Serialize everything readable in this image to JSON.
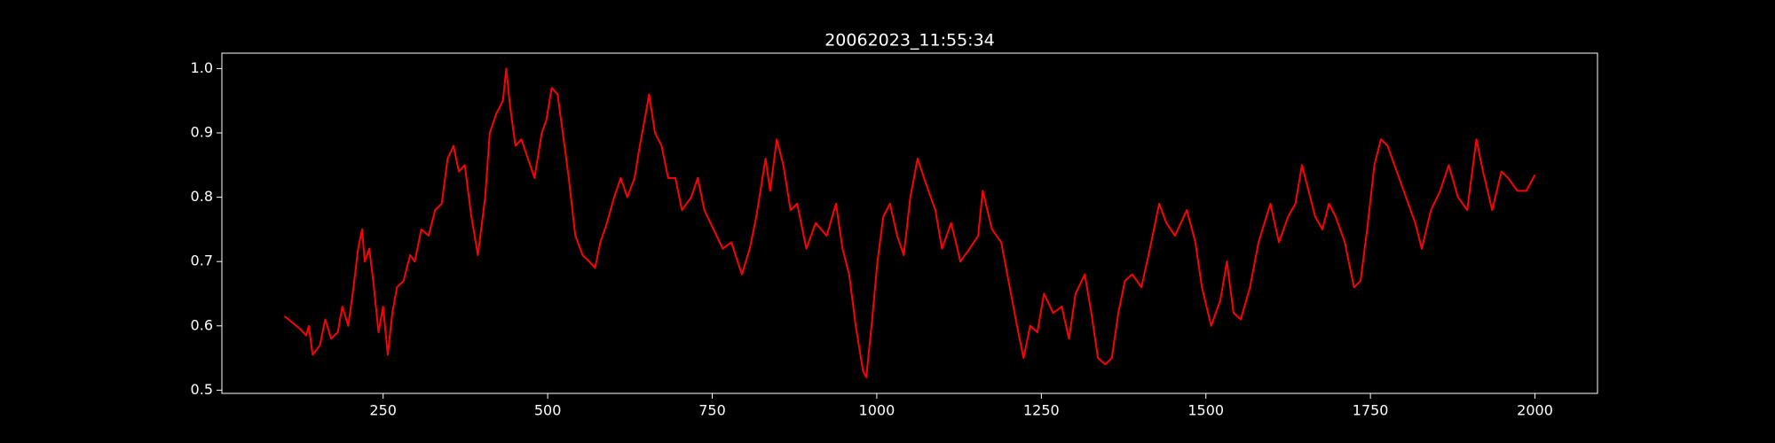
{
  "chart_data": {
    "type": "line",
    "title": "20062023_11:55:34",
    "x": [
      100,
      124,
      133,
      137,
      143,
      154,
      162,
      171,
      181,
      188,
      197,
      205,
      212,
      218,
      222,
      229,
      236,
      243,
      250,
      257,
      264,
      271,
      281,
      291,
      298,
      308,
      319,
      329,
      339,
      348,
      357,
      365,
      374,
      384,
      394,
      405,
      412,
      422,
      432,
      437,
      443,
      451,
      460,
      470,
      480,
      491,
      498,
      506,
      515,
      523,
      532,
      542,
      553,
      563,
      572,
      580,
      590,
      601,
      611,
      621,
      632,
      640,
      649,
      654,
      663,
      673,
      683,
      694,
      704,
      718,
      728,
      738,
      752,
      766,
      779,
      795,
      807,
      817,
      831,
      838,
      848,
      858,
      869,
      879,
      893,
      907,
      924,
      938,
      948,
      958,
      968,
      979,
      984,
      993,
      1001,
      1010,
      1020,
      1031,
      1041,
      1051,
      1062,
      1075,
      1089,
      1099,
      1113,
      1127,
      1141,
      1154,
      1161,
      1175,
      1189,
      1202,
      1213,
      1223,
      1233,
      1244,
      1254,
      1268,
      1281,
      1292,
      1302,
      1316,
      1326,
      1336,
      1347,
      1357,
      1367,
      1377,
      1388,
      1402,
      1415,
      1429,
      1440,
      1453,
      1471,
      1484,
      1494,
      1508,
      1522,
      1532,
      1542,
      1553,
      1567,
      1580,
      1598,
      1611,
      1625,
      1636,
      1646,
      1656,
      1666,
      1677,
      1687,
      1697,
      1711,
      1725,
      1735,
      1745,
      1756,
      1766,
      1776,
      1790,
      1804,
      1818,
      1828,
      1842,
      1856,
      1869,
      1883,
      1897,
      1911,
      1921,
      1935,
      1949,
      1959,
      1973,
      1987,
      2000
    ],
    "series": [
      {
        "color": "#ff0000",
        "values": [
          0.615,
          0.595,
          0.585,
          0.6,
          0.555,
          0.57,
          0.61,
          0.58,
          0.59,
          0.63,
          0.6,
          0.66,
          0.72,
          0.75,
          0.7,
          0.72,
          0.66,
          0.59,
          0.63,
          0.555,
          0.62,
          0.66,
          0.67,
          0.71,
          0.7,
          0.75,
          0.74,
          0.78,
          0.79,
          0.86,
          0.88,
          0.84,
          0.85,
          0.77,
          0.71,
          0.8,
          0.9,
          0.93,
          0.95,
          1.0,
          0.94,
          0.88,
          0.89,
          0.86,
          0.83,
          0.9,
          0.92,
          0.97,
          0.96,
          0.9,
          0.83,
          0.74,
          0.71,
          0.7,
          0.69,
          0.73,
          0.76,
          0.8,
          0.83,
          0.8,
          0.83,
          0.88,
          0.93,
          0.96,
          0.9,
          0.88,
          0.83,
          0.83,
          0.78,
          0.8,
          0.83,
          0.78,
          0.75,
          0.72,
          0.73,
          0.68,
          0.72,
          0.77,
          0.86,
          0.81,
          0.89,
          0.85,
          0.78,
          0.79,
          0.72,
          0.76,
          0.74,
          0.79,
          0.72,
          0.68,
          0.6,
          0.53,
          0.52,
          0.61,
          0.7,
          0.77,
          0.79,
          0.74,
          0.71,
          0.8,
          0.86,
          0.82,
          0.78,
          0.72,
          0.76,
          0.7,
          0.72,
          0.74,
          0.81,
          0.75,
          0.73,
          0.66,
          0.6,
          0.55,
          0.6,
          0.59,
          0.65,
          0.62,
          0.63,
          0.58,
          0.65,
          0.68,
          0.62,
          0.55,
          0.54,
          0.55,
          0.62,
          0.67,
          0.68,
          0.66,
          0.72,
          0.79,
          0.76,
          0.74,
          0.78,
          0.73,
          0.66,
          0.6,
          0.64,
          0.7,
          0.62,
          0.61,
          0.66,
          0.73,
          0.79,
          0.73,
          0.77,
          0.79,
          0.85,
          0.81,
          0.77,
          0.75,
          0.79,
          0.77,
          0.73,
          0.66,
          0.67,
          0.75,
          0.85,
          0.89,
          0.88,
          0.84,
          0.8,
          0.76,
          0.72,
          0.78,
          0.81,
          0.85,
          0.8,
          0.78,
          0.89,
          0.84,
          0.78,
          0.84,
          0.83,
          0.81,
          0.81,
          0.835
        ]
      }
    ],
    "xlim": [
      5,
      2095
    ],
    "ylim": [
      0.495,
      1.024
    ],
    "xticks": [
      250,
      500,
      750,
      1000,
      1250,
      1500,
      1750,
      2000
    ],
    "yticks": [
      0.5,
      0.6,
      0.7,
      0.8,
      0.9,
      {
        "value": 1,
        "label": "1.0"
      }
    ],
    "grid": false
  }
}
